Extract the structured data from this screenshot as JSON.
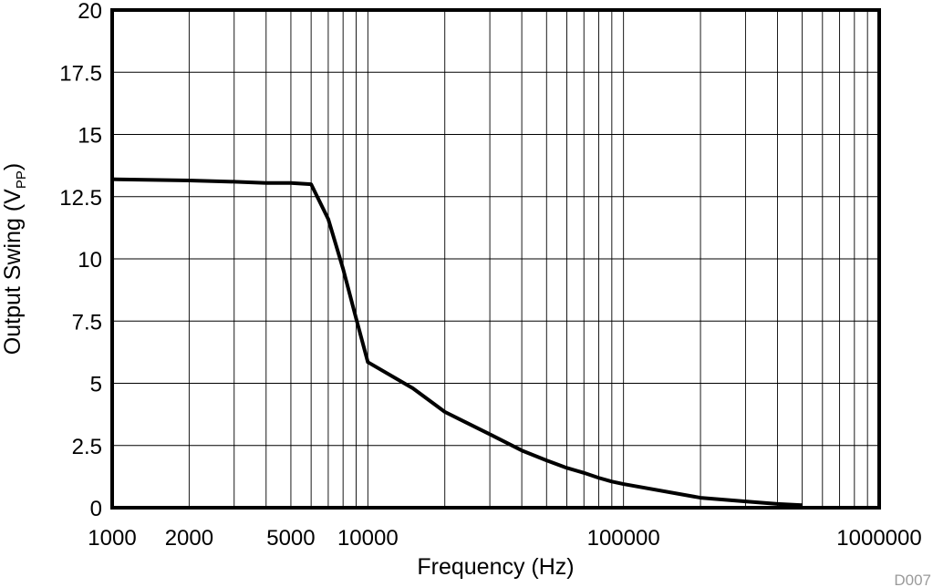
{
  "chart_data": {
    "type": "line",
    "xlabel": "Frequency (Hz)",
    "ylabel": {
      "main": "Output Swing (V",
      "subscript": "PP",
      "close": ")"
    },
    "x_scale": "log",
    "xlim": [
      1000,
      1000000
    ],
    "ylim": [
      0,
      20
    ],
    "x_ticks": [
      {
        "value": 1000,
        "label": "1000"
      },
      {
        "value": 2000,
        "label": "2000"
      },
      {
        "value": 5000,
        "label": "5000"
      },
      {
        "value": 10000,
        "label": "10000"
      },
      {
        "value": 100000,
        "label": "100000"
      },
      {
        "value": 1000000,
        "label": "1000000"
      }
    ],
    "y_ticks": [
      {
        "value": 0,
        "label": "0"
      },
      {
        "value": 2.5,
        "label": "2.5"
      },
      {
        "value": 5,
        "label": "5"
      },
      {
        "value": 7.5,
        "label": "7.5"
      },
      {
        "value": 10,
        "label": "10"
      },
      {
        "value": 12.5,
        "label": "12.5"
      },
      {
        "value": 15,
        "label": "15"
      },
      {
        "value": 17.5,
        "label": "17.5"
      },
      {
        "value": 20,
        "label": "20"
      }
    ],
    "grid": true,
    "series": [
      {
        "color": "#000000",
        "points": [
          {
            "x": 1000,
            "y": 13.2
          },
          {
            "x": 2000,
            "y": 13.15
          },
          {
            "x": 3000,
            "y": 13.1
          },
          {
            "x": 4000,
            "y": 13.05
          },
          {
            "x": 5000,
            "y": 13.05
          },
          {
            "x": 6000,
            "y": 13.0
          },
          {
            "x": 7000,
            "y": 11.6
          },
          {
            "x": 8000,
            "y": 9.6
          },
          {
            "x": 9000,
            "y": 7.6
          },
          {
            "x": 10000,
            "y": 5.85
          },
          {
            "x": 15000,
            "y": 4.8
          },
          {
            "x": 20000,
            "y": 3.85
          },
          {
            "x": 30000,
            "y": 2.95
          },
          {
            "x": 40000,
            "y": 2.3
          },
          {
            "x": 50000,
            "y": 1.9
          },
          {
            "x": 60000,
            "y": 1.6
          },
          {
            "x": 70000,
            "y": 1.4
          },
          {
            "x": 80000,
            "y": 1.2
          },
          {
            "x": 90000,
            "y": 1.05
          },
          {
            "x": 100000,
            "y": 0.95
          },
          {
            "x": 200000,
            "y": 0.4
          },
          {
            "x": 300000,
            "y": 0.25
          },
          {
            "x": 400000,
            "y": 0.15
          },
          {
            "x": 500000,
            "y": 0.1
          }
        ]
      }
    ],
    "footnote": "D007"
  }
}
